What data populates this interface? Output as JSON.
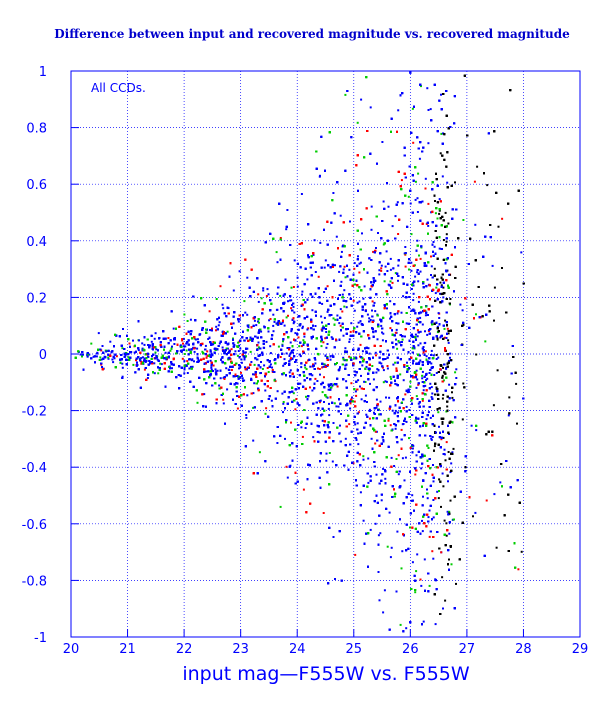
{
  "chart_data": {
    "type": "scatter",
    "title": "Difference between input and recovered magnitude vs. recovered magnitude",
    "xlabel": "input mag—F555W vs. F555W",
    "ylabel": "",
    "annotation": "All CCDs.",
    "xlim": [
      20,
      29
    ],
    "ylim": [
      -1,
      1
    ],
    "xticks": [
      "20",
      "21",
      "22",
      "23",
      "24",
      "25",
      "26",
      "27",
      "28",
      "29"
    ],
    "yticks": [
      "1",
      "0.8",
      "0.6",
      "0.4",
      "0.2",
      "0",
      "-0.2",
      "-0.4",
      "-0.6",
      "-0.8",
      "-1"
    ],
    "grid": true,
    "series_colors": [
      "#0000ff",
      "#00cc00",
      "#ff0000",
      "#000000"
    ],
    "envelope": [
      {
        "x": 20.0,
        "halfwidth": 0.03
      },
      {
        "x": 21.0,
        "halfwidth": 0.05
      },
      {
        "x": 22.0,
        "halfwidth": 0.09
      },
      {
        "x": 23.0,
        "halfwidth": 0.17
      },
      {
        "x": 24.0,
        "halfwidth": 0.3
      },
      {
        "x": 25.0,
        "halfwidth": 0.45
      },
      {
        "x": 26.0,
        "halfwidth": 0.6
      },
      {
        "x": 26.7,
        "halfwidth": 0.75
      }
    ],
    "density_cutoff_mag": 26.7
  },
  "colors": {
    "background": "#ffffff",
    "axis": "#0000ff",
    "grid": "#0000ff",
    "title": "#0000cc"
  }
}
